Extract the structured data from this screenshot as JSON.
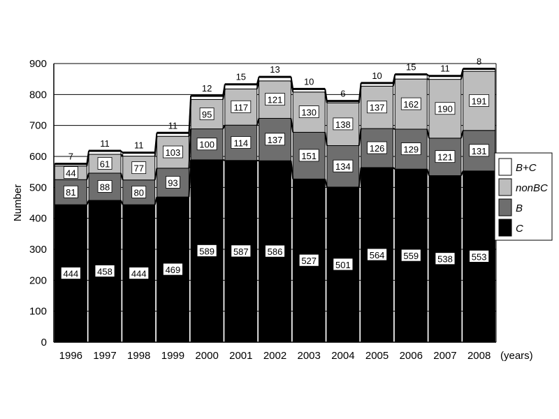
{
  "chart_data": {
    "type": "bar",
    "stacked": true,
    "categories": [
      "1996",
      "1997",
      "1998",
      "1999",
      "2000",
      "2001",
      "2002",
      "2003",
      "2004",
      "2005",
      "2006",
      "2007",
      "2008"
    ],
    "series": [
      {
        "name": "C",
        "color": "#000000",
        "values": [
          444,
          458,
          444,
          469,
          589,
          587,
          586,
          527,
          501,
          564,
          559,
          538,
          553
        ]
      },
      {
        "name": "B",
        "color": "#6e6e6e",
        "values": [
          81,
          88,
          80,
          93,
          100,
          114,
          137,
          151,
          134,
          126,
          129,
          121,
          131
        ]
      },
      {
        "name": "nonBC",
        "color": "#bdbdbd",
        "values": [
          44,
          61,
          77,
          103,
          95,
          117,
          121,
          130,
          138,
          137,
          162,
          190,
          191
        ]
      },
      {
        "name": "B+C",
        "color": "#ffffff",
        "values": [
          7,
          11,
          11,
          11,
          12,
          15,
          13,
          10,
          6,
          10,
          15,
          11,
          8
        ]
      }
    ],
    "xlabel": "(years)",
    "ylabel": "Number",
    "ylim": [
      0,
      900
    ],
    "yticks": [
      0,
      100,
      200,
      300,
      400,
      500,
      600,
      700,
      800,
      900
    ],
    "grid": true,
    "legend_position": "right",
    "legend_order": [
      "B+C",
      "nonBC",
      "B",
      "C"
    ]
  }
}
